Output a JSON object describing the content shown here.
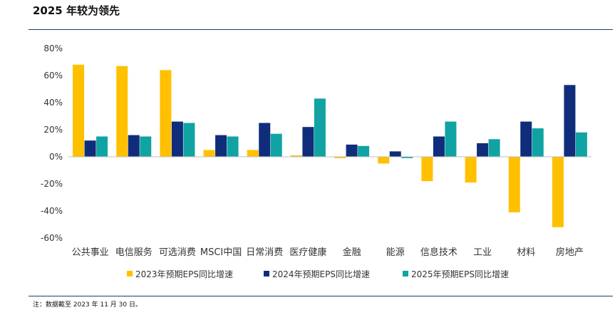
{
  "header": {
    "title": "2025 年较为领先"
  },
  "footer": {
    "note": "注：数据截至 2023 年 11 月 30 日。"
  },
  "chart_data": {
    "type": "bar",
    "title": "2025 年较为领先",
    "categories": [
      "公共事业",
      "电信服务",
      "可选消费",
      "MSCI中国",
      "日常消费",
      "医疗健康",
      "金融",
      "能源",
      "信息技术",
      "工业",
      "材料",
      "房地产"
    ],
    "series": [
      {
        "name": "2023年预期EPS同比增速",
        "color": "#FFC000",
        "values": [
          68,
          67,
          64,
          5,
          5,
          1,
          -1,
          -5,
          -18,
          -19,
          -41,
          -52
        ]
      },
      {
        "name": "2024年预期EPS同比增速",
        "color": "#0F2D7A",
        "values": [
          12,
          16,
          26,
          16,
          25,
          22,
          9,
          4,
          15,
          10,
          26,
          53
        ]
      },
      {
        "name": "2025年预期EPS同比增速",
        "color": "#11A3A3",
        "values": [
          15,
          15,
          25,
          15,
          17,
          43,
          8,
          -1,
          26,
          13,
          21,
          18
        ]
      }
    ],
    "yticks": [
      "80%",
      "60%",
      "40%",
      "20%",
      "0%",
      "-20%",
      "-40%",
      "-60%"
    ],
    "ylim": [
      -60,
      80
    ],
    "ylabel": "",
    "xlabel": "",
    "grid": false,
    "legend": "bottom"
  }
}
